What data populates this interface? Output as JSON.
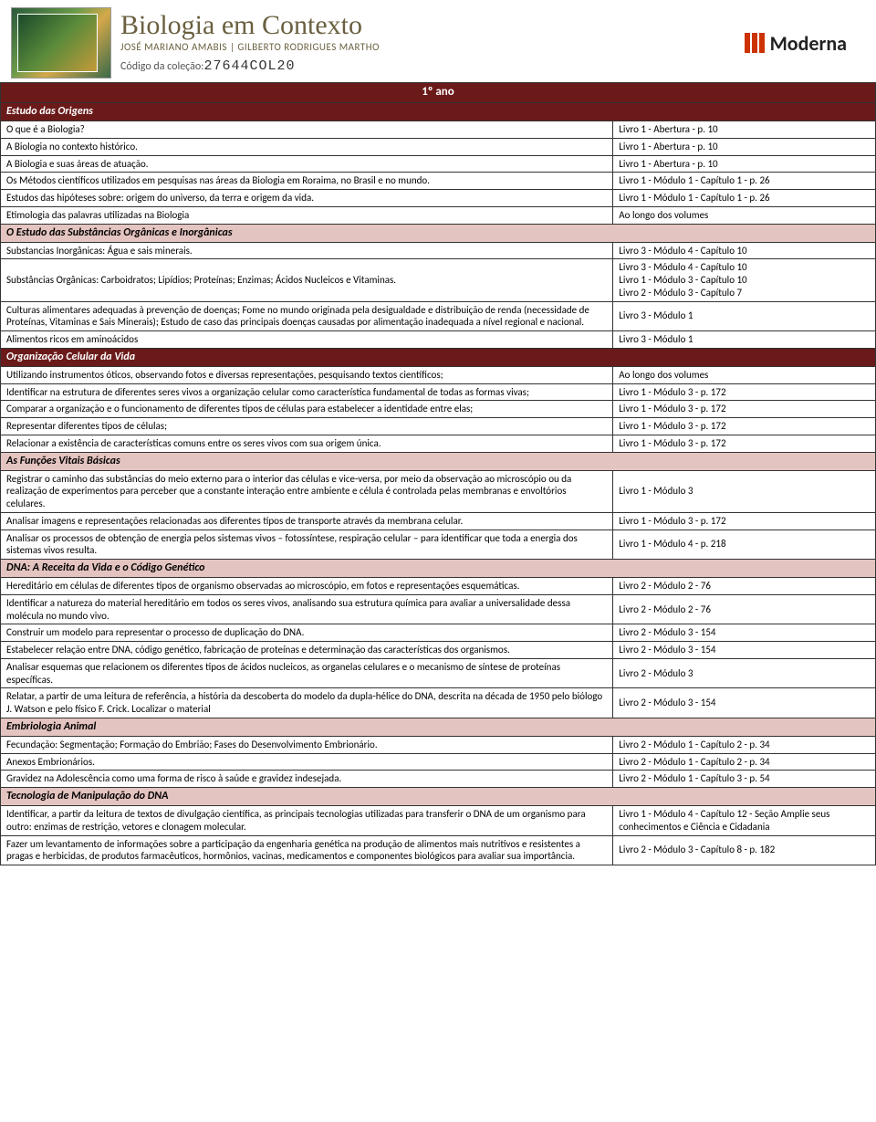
{
  "header": {
    "title": "Biologia em Contexto",
    "authors": "JOSÉ MARIANO AMABIS | GILBERTO RODRIGUES MARTHO",
    "codigo_label": "Código da coleção:",
    "codigo_value": "27644COL20",
    "brand": "Moderna"
  },
  "year_title": "1º ano",
  "sections": [
    {
      "style": "dark",
      "title": "Estudo das Origens",
      "rows": [
        {
          "topic": "O que é a Biologia?",
          "ref": "Livro 1 - Abertura - p. 10"
        },
        {
          "topic": "A Biologia no contexto histórico.",
          "ref": "Livro 1 - Abertura - p. 10"
        },
        {
          "topic": "A Biologia e suas áreas de atuação.",
          "ref": "Livro 1 - Abertura - p. 10"
        },
        {
          "topic": "Os Métodos científicos utilizados em pesquisas nas áreas da Biologia em Roraima, no Brasil e no mundo.",
          "ref": "Livro 1 - Módulo 1 - Capítulo 1 - p. 26"
        },
        {
          "topic": "Estudos das hipóteses sobre: origem do universo, da terra e origem da vida.",
          "ref": "Livro 1 - Módulo 1 - Capítulo 1 - p. 26"
        },
        {
          "topic": "Etimologia das palavras utilizadas na Biologia",
          "ref": "Ao longo dos volumes"
        }
      ]
    },
    {
      "style": "light",
      "title": "O Estudo das Substâncias Orgânicas e Inorgânicas",
      "rows": [
        {
          "topic": "Substancias Inorgânicas: Água e sais minerais.",
          "ref": "Livro 3 - Módulo 4 - Capítulo 10"
        },
        {
          "topic": "Substâncias Orgânicas: Carboidratos; Lipídios; Proteínas; Enzimas; Ácidos Nucleicos e Vitaminas.",
          "ref": "Livro 3 - Módulo 4 - Capítulo 10\nLivro 1 - Módulo 3 - Capítulo 10\nLivro 2 - Módulo 3 - Capítulo 7"
        },
        {
          "topic": "Culturas alimentares adequadas à prevenção de doenças; Fome no mundo originada pela desigualdade e distribuição de renda (necessidade de Proteínas, Vitaminas e Sais Minerais); Estudo de caso das principais doenças causadas por alimentação inadequada a nível regional e nacional.",
          "ref": "Livro 3 - Módulo 1"
        },
        {
          "topic": "Alimentos ricos em aminoácidos",
          "ref": "Livro 3 - Módulo 1"
        }
      ]
    },
    {
      "style": "dark",
      "title": "Organização Celular da Vida",
      "rows": [
        {
          "topic": "Utilizando instrumentos óticos, observando fotos e diversas representações, pesquisando textos científicos;",
          "ref": "Ao longo dos volumes"
        },
        {
          "topic": "Identificar na estrutura de diferentes seres vivos a organização celular como característica fundamental de todas as formas vivas;",
          "ref": "Livro 1 - Módulo 3 - p. 172"
        },
        {
          "topic": "Comparar a organização e o funcionamento de diferentes tipos de células para estabelecer a identidade entre elas;",
          "ref": "Livro 1 - Módulo 3 - p. 172"
        },
        {
          "topic": "Representar diferentes tipos de células;",
          "ref": "Livro 1 - Módulo 3 - p. 172"
        },
        {
          "topic": "Relacionar a existência de características comuns entre os seres vivos com sua origem única.",
          "ref": "Livro 1 - Módulo 3 - p. 172"
        }
      ]
    },
    {
      "style": "light",
      "title": "As Funções Vitais Básicas",
      "rows": [
        {
          "topic": "Registrar o caminho das substâncias do meio externo para o interior das células e vice-versa, por meio da observação ao microscópio ou da realização de experimentos para perceber que a constante interação entre ambiente e célula é controlada pelas membranas e envoltórios celulares.",
          "ref": "Livro 1 - Módulo 3"
        },
        {
          "topic": "Analisar imagens e representações relacionadas aos diferentes tipos de transporte através da membrana celular.",
          "ref": "Livro 1 - Módulo 3 - p. 172"
        },
        {
          "topic": "Analisar os processos de obtenção de energia pelos sistemas vivos – fotossíntese, respiração celular – para identificar que toda a energia dos sistemas vivos resulta.",
          "ref": "Livro 1 - Módulo 4 - p. 218"
        }
      ]
    },
    {
      "style": "light",
      "title": "DNA: A Receita da Vida e o Código Genético",
      "rows": [
        {
          "topic": "Hereditário em células de diferentes tipos de organismo observadas ao microscópio, em fotos e representações esquemáticas.",
          "ref": "Livro 2 - Módulo 2 - 76"
        },
        {
          "topic": "Identificar a natureza do material hereditário em todos os seres vivos, analisando sua estrutura química para avaliar a universalidade dessa molécula no mundo vivo.",
          "ref": "Livro 2 - Módulo 2 - 76"
        },
        {
          "topic": "Construir um modelo para representar o processo de duplicação do DNA.",
          "ref": "Livro 2 - Módulo 3 - 154"
        },
        {
          "topic": "Estabelecer relação entre DNA, código genético, fabricação de proteínas e determinação das características dos organismos.",
          "ref": "Livro 2 - Módulo 3 - 154"
        },
        {
          "topic": "Analisar esquemas que relacionem os diferentes tipos de ácidos nucleicos, as organelas celulares e o mecanismo de síntese de proteínas específicas.",
          "ref": "Livro 2 - Módulo 3"
        },
        {
          "topic": "Relatar, a partir de uma leitura de referência, a história da descoberta do modelo da dupla-hélice do DNA, descrita na década de 1950 pelo biólogo J. Watson e pelo físico F. Crick. Localizar o material",
          "ref": "Livro 2 - Módulo 3 - 154"
        }
      ]
    },
    {
      "style": "light",
      "title": "Embriologia Animal",
      "rows": [
        {
          "topic": "Fecundação: Segmentação; Formação do Embrião; Fases do Desenvolvimento Embrionário.",
          "ref": "Livro 2 - Módulo 1 - Capítulo 2 - p. 34"
        },
        {
          "topic": "Anexos Embrionários.",
          "ref": "Livro 2 - Módulo 1 - Capítulo 2 - p. 34"
        },
        {
          "topic": "Gravidez na Adolescência como uma forma de risco à saúde e gravidez indesejada.",
          "ref": "Livro 2 - Módulo 1 - Capítulo 3 - p. 54"
        }
      ]
    },
    {
      "style": "light",
      "title": "Tecnologia de Manipulação do DNA",
      "rows": [
        {
          "topic": "Identificar, a partir da leitura de textos de divulgação científica, as principais tecnologias utilizadas para transferir o DNA de um organismo para outro: enzimas de restrição, vetores e clonagem molecular.",
          "ref": "Livro 1 - Módulo 4 - Capítulo 12 - Seção Amplie seus conhecimentos e Ciência e Cidadania"
        },
        {
          "topic": "Fazer um levantamento de informações sobre a participação da engenharia genética na produção de alimentos mais nutritivos e resistentes a pragas e herbicidas, de produtos farmacêuticos, hormônios, vacinas, medicamentos e componentes biológicos para avaliar sua importância.",
          "ref": "Livro 2 - Módulo 3 - Capítulo 8 - p. 182"
        }
      ]
    }
  ]
}
